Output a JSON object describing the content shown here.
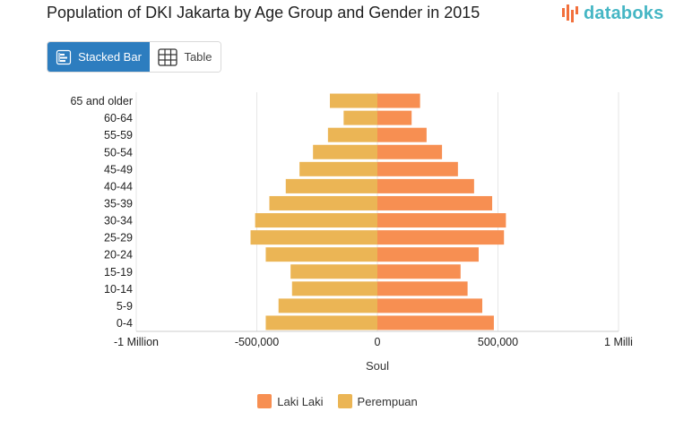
{
  "header": {
    "title": "Population of DKI Jakarta by Age Group and Gender in 2015",
    "brand": "databoks",
    "brand_color": "#45b6c4"
  },
  "tabs": [
    {
      "label": "Stacked Bar",
      "icon": "stacked-bar-icon",
      "active": true
    },
    {
      "label": "Table",
      "icon": "table-grid-icon",
      "active": false
    }
  ],
  "colors": {
    "male": "#f78f52",
    "female": "#ebb555",
    "grid": "#e6e6e6",
    "active_tab": "#2d7dbf"
  },
  "chart_data": {
    "type": "bar",
    "orientation": "horizontal",
    "stacking": "population-pyramid",
    "title": "Population of DKI Jakarta by Age Group and Gender in 2015",
    "xlabel": "Soul",
    "ylabel": "",
    "xlim": [
      -1000000,
      1000000
    ],
    "x_ticks": [
      -1000000,
      -500000,
      0,
      500000,
      1000000
    ],
    "x_tick_labels": [
      "-1 Million",
      "-500,000",
      "0",
      "500,000",
      "1 Milli"
    ],
    "categories": [
      "65 and older",
      "60-64",
      "55-59",
      "50-54",
      "45-49",
      "40-44",
      "35-39",
      "30-34",
      "25-29",
      "20-24",
      "15-19",
      "10-14",
      "5-9",
      "0-4"
    ],
    "series": [
      {
        "name": "Laki Laki",
        "values": [
          177000,
          142000,
          204000,
          268000,
          334000,
          401000,
          476000,
          533000,
          525000,
          420000,
          345000,
          374000,
          435000,
          483000
        ]
      },
      {
        "name": "Perempuan",
        "values": [
          -197000,
          -140000,
          -205000,
          -267000,
          -323000,
          -380000,
          -448000,
          -507000,
          -526000,
          -463000,
          -360000,
          -354000,
          -410000,
          -463000
        ]
      }
    ],
    "legend_position": "bottom-center",
    "grid": true
  }
}
